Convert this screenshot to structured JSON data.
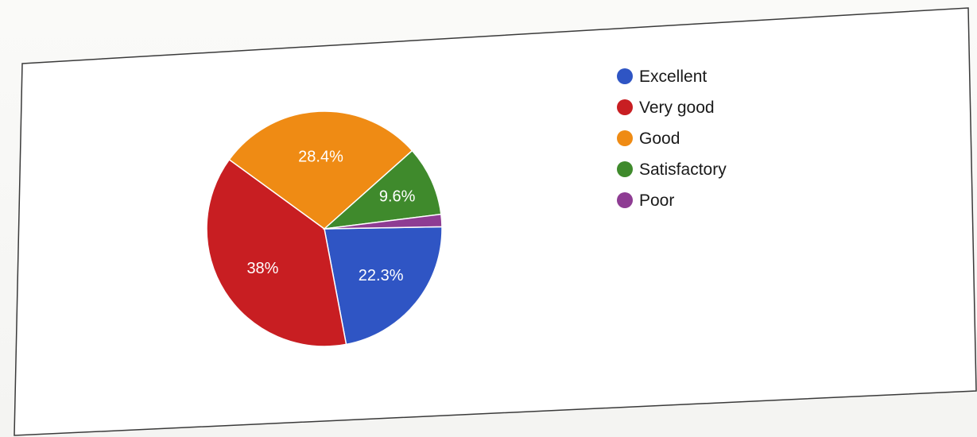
{
  "chart_data": {
    "type": "pie",
    "slices": [
      {
        "name": "Excellent",
        "value": 22.3,
        "label": "22.3%",
        "color": "#2f55c4"
      },
      {
        "name": "Very good",
        "value": 38,
        "label": "38%",
        "color": "#c81e22"
      },
      {
        "name": "Good",
        "value": 28.4,
        "label": "28.4%",
        "color": "#ef8b14"
      },
      {
        "name": "Satisfactory",
        "value": 9.6,
        "label": "9.6%",
        "color": "#3f8a2c"
      },
      {
        "name": "Poor",
        "value": 1.7,
        "label": "",
        "color": "#8e3c93"
      }
    ],
    "legend_position": "right",
    "title": ""
  }
}
